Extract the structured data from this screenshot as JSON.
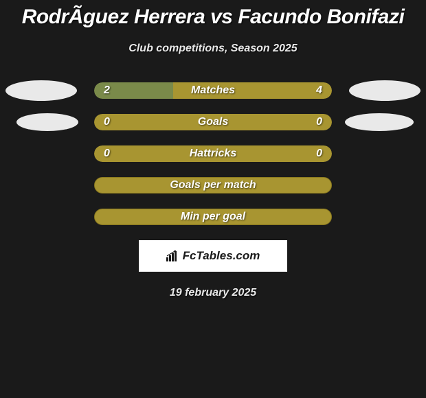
{
  "title": "RodrÃ­guez Herrera vs Facundo Bonifazi",
  "subtitle": "Club competitions, Season 2025",
  "date": "19 february 2025",
  "brand": "FcTables.com",
  "colors": {
    "bg": "#1a1a1a",
    "bar_primary": "#a89531",
    "bar_secondary_left": "#7a8a4a",
    "ellipse": "#e9e9e9",
    "text": "#ffffff"
  },
  "stats": [
    {
      "label": "Matches",
      "left_value": "2",
      "right_value": "4",
      "left_pct": 33.3,
      "right_pct": 66.7,
      "left_color": "#7a8a4a",
      "right_color": "#a89531",
      "has_values": true,
      "show_ellipse": true
    },
    {
      "label": "Goals",
      "left_value": "0",
      "right_value": "0",
      "left_pct": 50,
      "right_pct": 50,
      "left_color": "#a89531",
      "right_color": "#a89531",
      "has_values": true,
      "show_ellipse": true
    },
    {
      "label": "Hattricks",
      "left_value": "0",
      "right_value": "0",
      "left_pct": 50,
      "right_pct": 50,
      "left_color": "#a89531",
      "right_color": "#a89531",
      "has_values": true,
      "show_ellipse": false
    },
    {
      "label": "Goals per match",
      "left_value": "",
      "right_value": "",
      "left_pct": 100,
      "right_pct": 0,
      "left_color": "#a89531",
      "right_color": "#a89531",
      "has_values": false,
      "show_ellipse": false
    },
    {
      "label": "Min per goal",
      "left_value": "",
      "right_value": "",
      "left_pct": 100,
      "right_pct": 0,
      "left_color": "#a89531",
      "right_color": "#a89531",
      "has_values": false,
      "show_ellipse": false
    }
  ]
}
